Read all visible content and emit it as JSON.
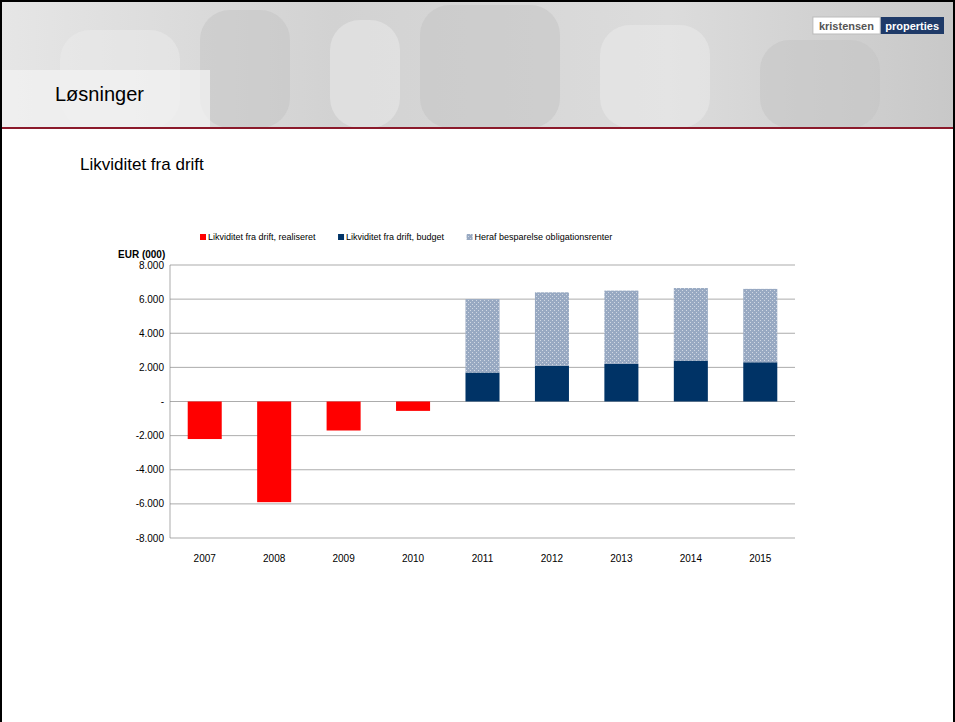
{
  "header": {
    "title": "Løsninger",
    "logo_left": "kristensen",
    "logo_right": "properties"
  },
  "chart_data": {
    "type": "bar",
    "title": "Likviditet fra drift",
    "y_label": "EUR (000)",
    "stacked": true,
    "legend": "top",
    "grid": true,
    "categories": [
      "2007",
      "2008",
      "2009",
      "2010",
      "2011",
      "2012",
      "2013",
      "2014",
      "2015"
    ],
    "series": [
      {
        "name": "Likviditet fra drift, realiseret",
        "color": "#ff0000",
        "values": [
          -2200,
          -5900,
          -1700,
          -550,
          null,
          null,
          null,
          null,
          null
        ]
      },
      {
        "name": "Likviditet fra drift, budget",
        "color": "#003366",
        "values": [
          null,
          null,
          null,
          null,
          1700,
          2100,
          2200,
          2400,
          2300
        ]
      },
      {
        "name": "Heraf besparelse obligationsrenter",
        "color": "#98a9c2",
        "values": [
          null,
          null,
          null,
          null,
          4300,
          4300,
          4300,
          4250,
          4300
        ]
      }
    ],
    "ylim": [
      -8000,
      8000
    ],
    "yticks": [
      {
        "value": -8000,
        "label": "-8.000"
      },
      {
        "value": -6000,
        "label": "-6.000"
      },
      {
        "value": -4000,
        "label": "-4.000"
      },
      {
        "value": -2000,
        "label": "-2.000"
      },
      {
        "value": 0,
        "label": "-"
      },
      {
        "value": 2000,
        "label": "2.000"
      },
      {
        "value": 4000,
        "label": "4.000"
      },
      {
        "value": 6000,
        "label": "6.000"
      },
      {
        "value": 8000,
        "label": "8.000"
      }
    ]
  }
}
